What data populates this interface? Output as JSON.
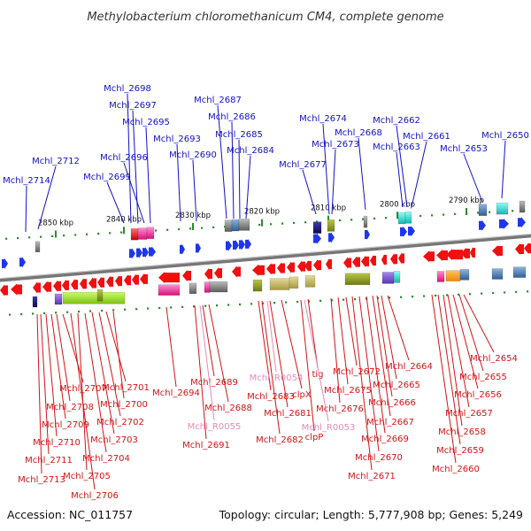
{
  "title": "Methylobacterium chloromethanicum CM4, complete genome",
  "accession": "Accession: NC_011757",
  "topology": "Topology: circular; Length: 5,777,908 bp; Genes: 5,249",
  "colors": {
    "forward_label": "#1010c8",
    "reverse_label": "#d41414",
    "rna_label": "#e88ab8",
    "forward_arrow": "#1f36f0",
    "reverse_arrow": "#f01010",
    "backbone": "#777777",
    "scale": "#2e8b2e"
  },
  "scale_ticks": [
    "2850 kbp",
    "2840 kbp",
    "2830 kbp",
    "2820 kbp",
    "2810 kbp",
    "2800 kbp",
    "2790 kbp"
  ],
  "forward_genes": [
    "Mchl_2714",
    "Mchl_2712",
    "Mchl_2699",
    "Mchl_2698",
    "Mchl_2697",
    "Mchl_2696",
    "Mchl_2695",
    "Mchl_2693",
    "Mchl_2690",
    "Mchl_2687",
    "Mchl_2686",
    "Mchl_2685",
    "Mchl_2684",
    "Mchl_2677",
    "Mchl_2674",
    "Mchl_2673",
    "Mchl_2668",
    "Mchl_2663",
    "Mchl_2662",
    "Mchl_2661",
    "Mchl_2653",
    "Mchl_2650"
  ],
  "reverse_genes": [
    "Mchl_2713",
    "Mchl_2711",
    "Mchl_2710",
    "Mchl_2709",
    "Mchl_2708",
    "Mchl_2707",
    "Mchl_2706",
    "Mchl_2705",
    "Mchl_2704",
    "Mchl_2703",
    "Mchl_2702",
    "Mchl_2701",
    "Mchl_2700",
    "Mchl_2694",
    "Mchl_2691",
    "Mchl_2689",
    "Mchl_2688",
    "Mchl_2683",
    "Mchl_2682",
    "Mchl_2681",
    "clpX",
    "clpP",
    "tig",
    "Mchl_2676",
    "Mchl_2675",
    "Mchl_2672",
    "Mchl_2671",
    "Mchl_2670",
    "Mchl_2669",
    "Mchl_2667",
    "Mchl_2666",
    "Mchl_2665",
    "Mchl_2664",
    "Mchl_2660",
    "Mchl_2659",
    "Mchl_2658",
    "Mchl_2657",
    "Mchl_2656",
    "Mchl_2655",
    "Mchl_2654"
  ],
  "rna_genes": [
    "Mchl_R0055",
    "Mchl_R0054",
    "Mchl_R0053"
  ]
}
